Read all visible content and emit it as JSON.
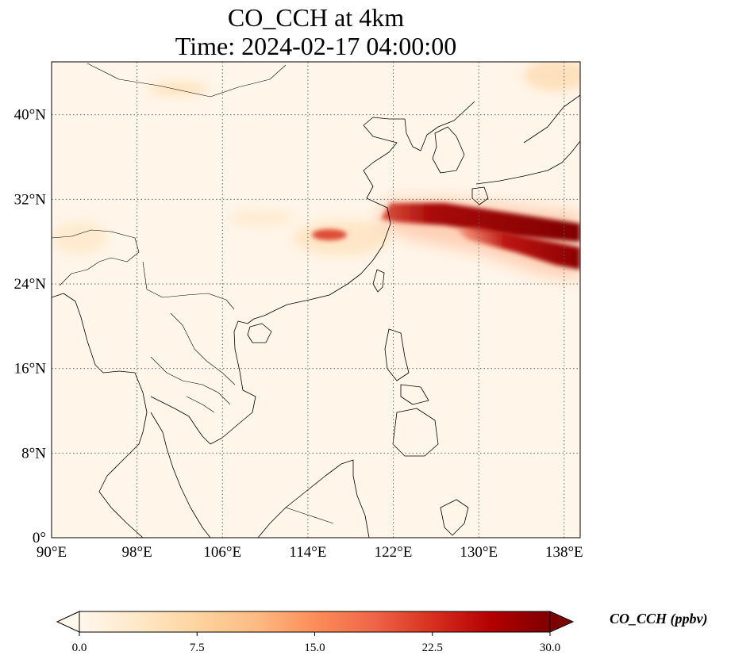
{
  "title": {
    "line1": "CO_CCH at 4km",
    "line2": "Time: 2024-02-17 04:00:00"
  },
  "map": {
    "extent": {
      "lon": [
        90,
        139.5
      ],
      "lat": [
        0,
        45
      ]
    },
    "lon_ticks": [
      {
        "value": 90,
        "label": "90°E"
      },
      {
        "value": 98,
        "label": "98°E"
      },
      {
        "value": 106,
        "label": "106°E"
      },
      {
        "value": 114,
        "label": "114°E"
      },
      {
        "value": 122,
        "label": "122°E"
      },
      {
        "value": 130,
        "label": "130°E"
      },
      {
        "value": 138,
        "label": "138°E"
      }
    ],
    "lat_ticks": [
      {
        "value": 0,
        "label": "0°"
      },
      {
        "value": 8,
        "label": "8°N"
      },
      {
        "value": 16,
        "label": "16°N"
      },
      {
        "value": 24,
        "label": "24°N"
      },
      {
        "value": 32,
        "label": "32°N"
      },
      {
        "value": 40,
        "label": "40°N"
      }
    ],
    "gridlines": "dotted",
    "background_color": "#fff5e8",
    "coastline_color": "#000000",
    "plume": {
      "peak_ppbv": 30,
      "northern_band": {
        "start_lon": 122,
        "start_lat": 31,
        "end_lon": 139.5,
        "end_lat": 28.8
      },
      "southern_band": {
        "start_lon": 129,
        "start_lat": 28.8,
        "end_lon": 139.5,
        "end_lat": 26.5
      },
      "inland_patch": {
        "lon": 116.5,
        "lat": 28.7
      }
    }
  },
  "colorbar": {
    "label": "CO_CCH (ppbv)",
    "min": 0,
    "max": 30,
    "ticks": [
      "0.0",
      "7.5",
      "15.0",
      "22.5",
      "30.0"
    ],
    "colormap": "OrRd",
    "extend": "both",
    "stops": [
      "#fff7ec",
      "#fee8c8",
      "#fdd49e",
      "#fdbb84",
      "#fc8d59",
      "#ef6548",
      "#d7301f",
      "#b30000",
      "#7f0000"
    ]
  }
}
